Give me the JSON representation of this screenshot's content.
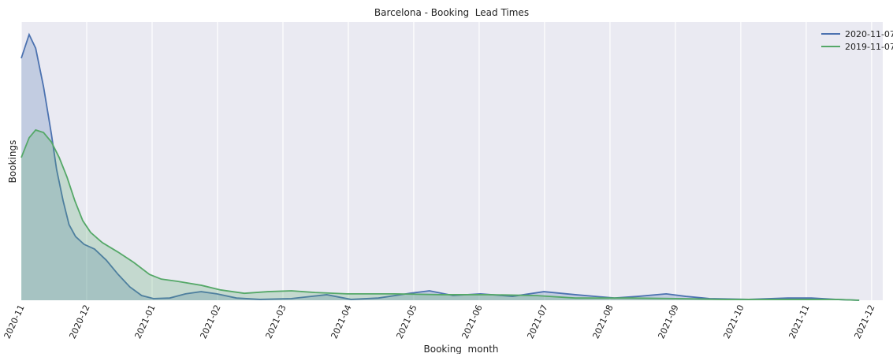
{
  "chart_data": {
    "type": "area",
    "title": "Barcelona - Booking  Lead Times",
    "xlabel": "Booking  month",
    "ylabel": "Bookings",
    "xlim": [
      0,
      13.17
    ],
    "ylim": [
      0,
      100
    ],
    "xticks": [
      {
        "value": 0,
        "label": "2020-11"
      },
      {
        "value": 1,
        "label": "2020-12"
      },
      {
        "value": 2,
        "label": "2021-01"
      },
      {
        "value": 3,
        "label": "2021-02"
      },
      {
        "value": 4,
        "label": "2021-03"
      },
      {
        "value": 5,
        "label": "2021-04"
      },
      {
        "value": 6,
        "label": "2021-05"
      },
      {
        "value": 7,
        "label": "2021-06"
      },
      {
        "value": 8,
        "label": "2021-07"
      },
      {
        "value": 9,
        "label": "2021-08"
      },
      {
        "value": 10,
        "label": "2021-09"
      },
      {
        "value": 11,
        "label": "2021-10"
      },
      {
        "value": 12,
        "label": "2021-11"
      },
      {
        "value": 13,
        "label": "2021-12"
      }
    ],
    "grid": true,
    "legend": "upper right",
    "series": [
      {
        "name": "2020-11-07",
        "color": "#4c72b0",
        "x": [
          0,
          0.12,
          0.22,
          0.34,
          0.46,
          0.54,
          0.64,
          0.73,
          0.83,
          0.96,
          1.12,
          1.3,
          1.48,
          1.66,
          1.84,
          2.02,
          2.27,
          2.51,
          2.75,
          2.99,
          3.29,
          3.65,
          4.13,
          4.67,
          5.04,
          5.46,
          5.94,
          6.24,
          6.6,
          7.02,
          7.51,
          7.99,
          8.47,
          9.07,
          9.43,
          9.86,
          10.16,
          10.52,
          11.12,
          11.72,
          12.08,
          12.45,
          12.81
        ],
        "values": [
          87,
          95.5,
          90.6,
          76.8,
          59.8,
          47,
          35.7,
          27.2,
          22.9,
          20.1,
          18.4,
          14.4,
          9.3,
          4.8,
          1.7,
          0.6,
          0.8,
          2.3,
          3.1,
          2.3,
          0.8,
          0.3,
          0.6,
          2,
          0.3,
          0.8,
          2.5,
          3.4,
          1.7,
          2.3,
          1.4,
          3.1,
          2,
          0.8,
          1.4,
          2.3,
          1.4,
          0.6,
          0.3,
          0.8,
          0.8,
          0.3,
          0
        ]
      },
      {
        "name": "2019-11-07",
        "color": "#55a868",
        "x": [
          0,
          0.12,
          0.22,
          0.34,
          0.46,
          0.58,
          0.7,
          0.82,
          0.94,
          1.06,
          1.24,
          1.48,
          1.72,
          1.96,
          2.14,
          2.39,
          2.75,
          3.05,
          3.41,
          3.77,
          4.13,
          4.49,
          4.98,
          5.7,
          6.42,
          7.14,
          7.87,
          8.47,
          9.31,
          10.04,
          10.76,
          11.72,
          12.45,
          12.81
        ],
        "values": [
          51.3,
          58.4,
          61.2,
          60.3,
          56.9,
          51.3,
          44.2,
          35.7,
          28.6,
          24.4,
          20.7,
          17.3,
          13.6,
          9.3,
          7.6,
          6.8,
          5.4,
          3.7,
          2.5,
          3.1,
          3.4,
          2.8,
          2.3,
          2.3,
          2,
          2,
          1.7,
          0.8,
          0.8,
          0.6,
          0.3,
          0.3,
          0.3,
          0
        ]
      }
    ]
  }
}
